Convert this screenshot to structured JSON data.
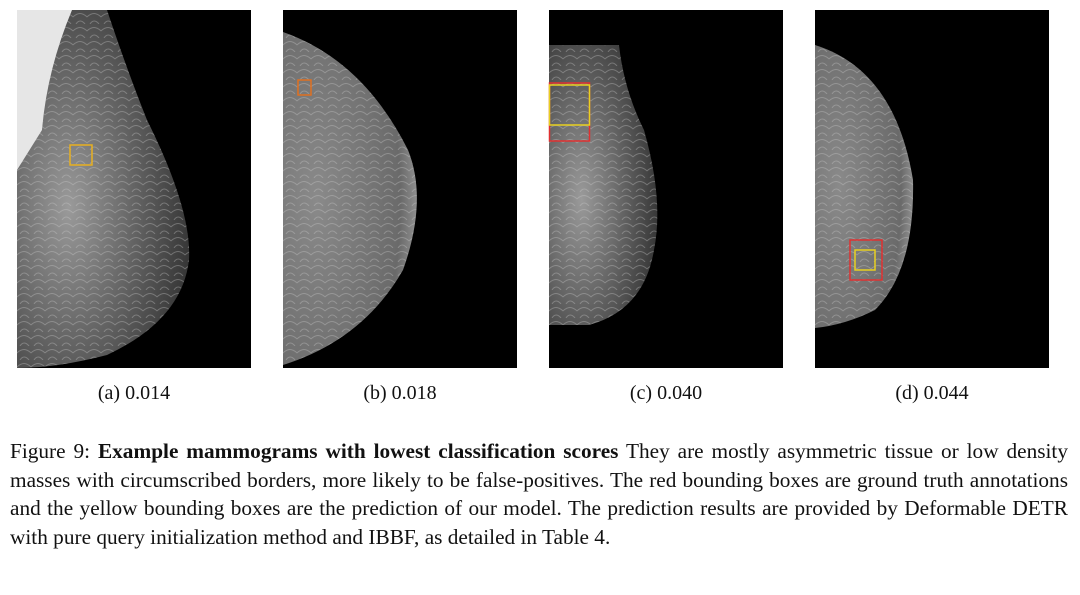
{
  "figure": {
    "panels": [
      {
        "caption": "(a) 0.014"
      },
      {
        "caption": "(b) 0.018"
      },
      {
        "caption": "(c) 0.040"
      },
      {
        "caption": "(d) 0.044"
      }
    ],
    "caption": {
      "label": "Figure 9:",
      "title": "Example mammograms with lowest classification scores",
      "text": "They are mostly asymmetric tissue or low density masses with circumscribed borders, more likely to be false-positives. The red bounding boxes are ground truth annotations and the yellow bounding boxes are the prediction of our model. The prediction results are provided by Deformable DETR with pure query initialization method and IBBF, as detailed in Table 4."
    }
  }
}
